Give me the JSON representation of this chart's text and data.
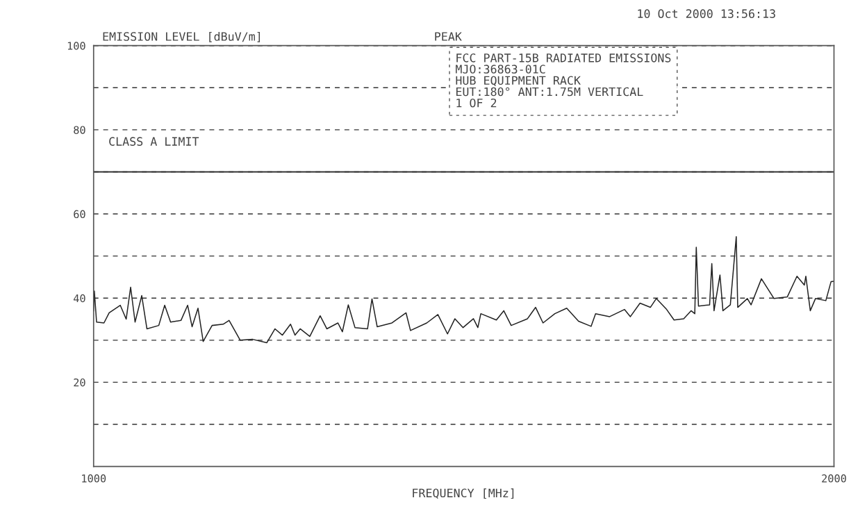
{
  "chart_data": {
    "type": "line",
    "ylabel": "EMISSION LEVEL [dBuV/m]",
    "xlabel": "FREQUENCY [MHz]",
    "annotations": [
      "10 Oct 2000 13:56:13",
      "PEAK",
      "FCC PART-15B RADIATED EMISSIONS\nMJO:36863-01C\nHUB EQUIPMENT RACK\nEUT:180° ANT:1.75M VERTICAL\n1 OF 2"
    ],
    "x": [
      1000,
      1001,
      1004,
      1014,
      1021,
      1036,
      1044,
      1050,
      1056,
      1065,
      1072,
      1088,
      1096,
      1104,
      1118,
      1127,
      1133,
      1141,
      1148,
      1160,
      1175,
      1183,
      1198,
      1215,
      1234,
      1245,
      1255,
      1266,
      1272,
      1279,
      1292,
      1306,
      1315,
      1330,
      1336,
      1344,
      1353,
      1370,
      1376,
      1383,
      1403,
      1422,
      1428,
      1450,
      1465,
      1478,
      1488,
      1499,
      1513,
      1519,
      1523,
      1544,
      1554,
      1564,
      1586,
      1597,
      1607,
      1623,
      1639,
      1655,
      1672,
      1678,
      1697,
      1717,
      1725,
      1738,
      1752,
      1760,
      1774,
      1784,
      1797,
      1807,
      1812,
      1814,
      1817,
      1832,
      1835,
      1838,
      1846,
      1850,
      1860,
      1868,
      1870,
      1883,
      1888,
      1902,
      1919,
      1937,
      1950,
      1960,
      1962,
      1968,
      1975,
      1989,
      1996,
      2000
    ],
    "series": [
      {
        "color": "#222222",
        "values": [
          37,
          41.7,
          34.3,
          34.1,
          36.5,
          38.3,
          35,
          42.6,
          34.3,
          40.6,
          32.7,
          33.5,
          38.3,
          34.3,
          34.7,
          38.3,
          33.2,
          37.6,
          29.7,
          33.5,
          33.8,
          34.7,
          30,
          30.2,
          29.4,
          32.7,
          31.2,
          33.8,
          31.2,
          32.7,
          30.9,
          35.8,
          32.7,
          34.1,
          32,
          38.4,
          33,
          32.7,
          39.8,
          33.2,
          34.1,
          36.5,
          32.3,
          34.1,
          36.1,
          31.5,
          35.1,
          33,
          35.1,
          33,
          36.3,
          34.8,
          37,
          33.5,
          35.1,
          37.8,
          34.1,
          36.3,
          37.6,
          34.5,
          33.3,
          36.3,
          35.6,
          37.3,
          35.6,
          38.8,
          37.8,
          39.9,
          37.3,
          34.8,
          35.1,
          37,
          36.3,
          52.1,
          38.1,
          38.4,
          48.2,
          37,
          45.5,
          37,
          38.4,
          54.6,
          37.8,
          39.9,
          38.4,
          44.6,
          39.9,
          40.3,
          45.2,
          43.1,
          45.2,
          37,
          39.9,
          39.4,
          43.9,
          44
        ]
      }
    ],
    "xlim": [
      1000,
      2000
    ],
    "xticks": [
      1000,
      2000
    ],
    "ylim": [
      0,
      100
    ],
    "yticks": [
      {
        "value": 0,
        "label": null
      },
      {
        "value": 10,
        "label": null
      },
      20,
      {
        "value": 30,
        "label": null
      },
      40,
      {
        "value": 50,
        "label": null
      },
      60,
      {
        "value": 70,
        "label": null
      },
      80,
      {
        "value": 90,
        "label": null
      },
      100
    ],
    "grid": "y",
    "line_style": "solid",
    "ref_lines": [
      {
        "axis": "y",
        "value": 70,
        "label": "CLASS A LIMIT",
        "color": "#333333",
        "line_style": "solid"
      }
    ]
  }
}
